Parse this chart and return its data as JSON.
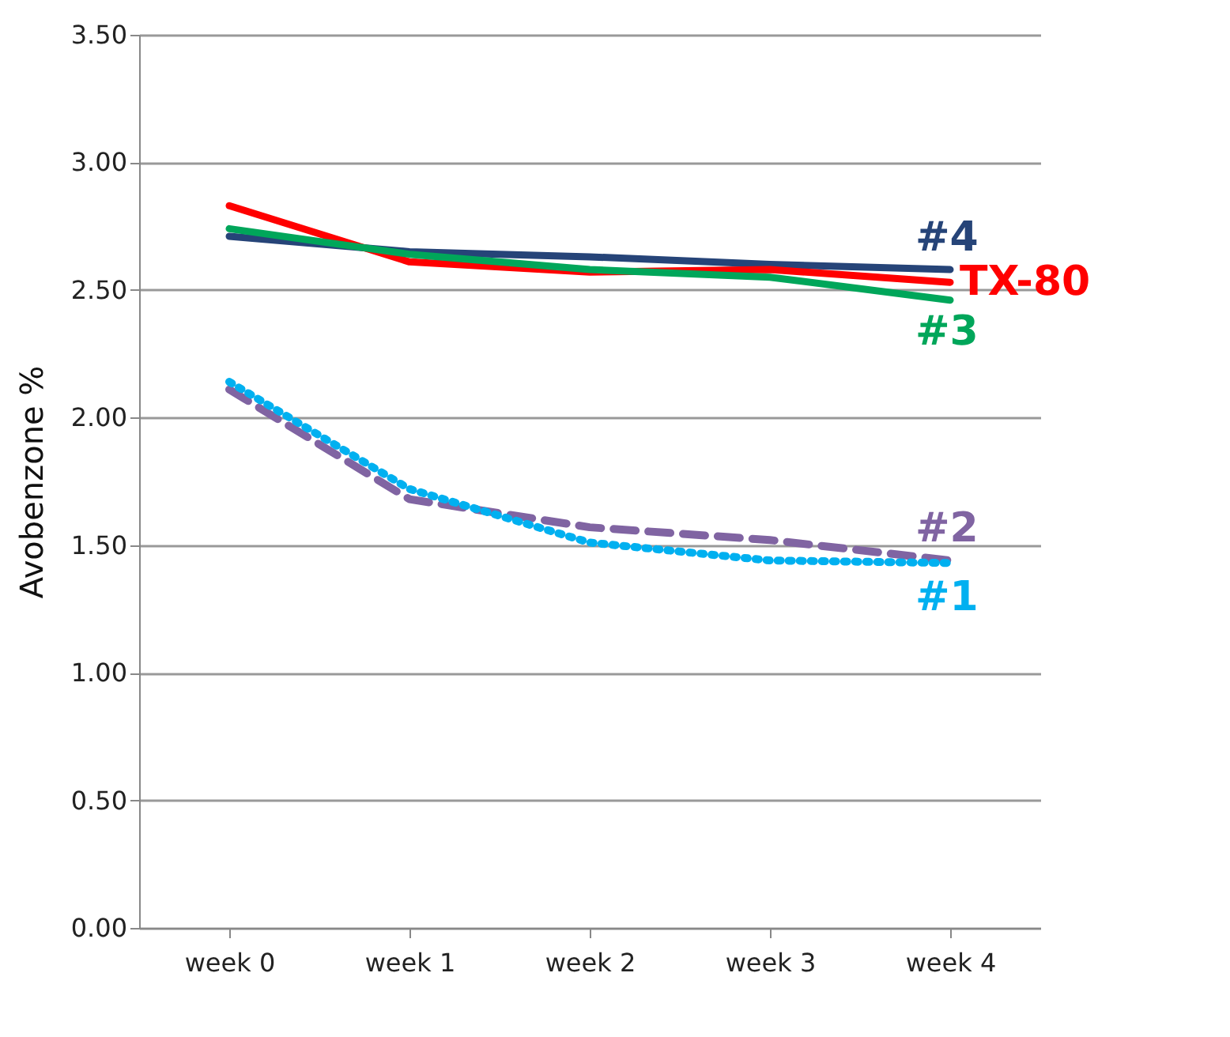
{
  "chart_data": {
    "type": "line",
    "ylabel": "Avobenzone %",
    "categories": [
      "week 0",
      "week 1",
      "week 2",
      "week 3",
      "week 4"
    ],
    "ylim": [
      0,
      3.5
    ],
    "yticks": [
      {
        "value": 0,
        "label": "0.00"
      },
      {
        "value": 0.5,
        "label": "0.50"
      },
      {
        "value": 1,
        "label": "1.00"
      },
      {
        "value": 1.5,
        "label": "1.50"
      },
      {
        "value": 2,
        "label": "2.00"
      },
      {
        "value": 2.5,
        "label": "2.50"
      },
      {
        "value": 3,
        "label": "3.00"
      },
      {
        "value": 3.5,
        "label": "3.50"
      }
    ],
    "grid": "y",
    "legend": false,
    "series": [
      {
        "name": "#4",
        "color": "#264478",
        "line_style": "solid",
        "values": [
          2.71,
          2.65,
          2.63,
          2.6,
          2.58
        ]
      },
      {
        "name": "TX-80",
        "color": "#ff0000",
        "line_style": "solid",
        "values": [
          2.83,
          2.61,
          2.57,
          2.58,
          2.53
        ]
      },
      {
        "name": "#3",
        "color": "#00a65a",
        "line_style": "solid",
        "values": [
          2.74,
          2.64,
          2.58,
          2.55,
          2.46
        ]
      },
      {
        "name": "#2",
        "color": "#8064a2",
        "line_style": "dashed",
        "values": [
          2.11,
          1.68,
          1.57,
          1.52,
          1.44
        ]
      },
      {
        "name": "#1",
        "color": "#00b0f0",
        "line_style": "dotted",
        "values": [
          2.14,
          1.72,
          1.51,
          1.44,
          1.43
        ]
      }
    ]
  }
}
